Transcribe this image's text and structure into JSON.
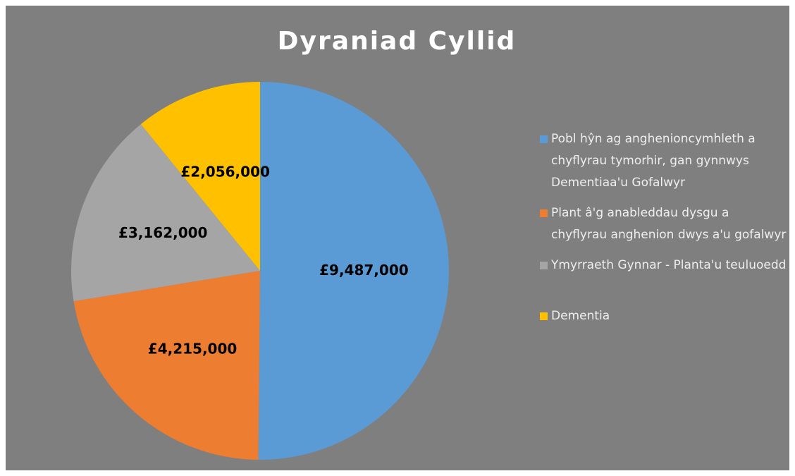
{
  "chart_data": {
    "type": "pie",
    "title": "Dyraniad Cyllid",
    "categories": [
      "Pobl hŷn ag anghenioncymhleth a chyflyrau tymorhir, gan gynnwys Dementiaa'u Gofalwyr",
      "Plant â'g anableddau dysgu a chyflyrau anghenion dwys a'u gofalwyr",
      "Ymyrraeth Gynnar - Planta'u teuluoedd",
      "Dementia"
    ],
    "values": [
      9487000,
      4215000,
      3162000,
      2056000
    ],
    "value_labels": [
      "£9,487,000",
      "£4,215,000",
      "£3,162,000",
      "£2,056,000"
    ],
    "colors": [
      "#5b9bd5",
      "#ed7d31",
      "#a5a5a5",
      "#ffc000"
    ],
    "legend": "right"
  }
}
